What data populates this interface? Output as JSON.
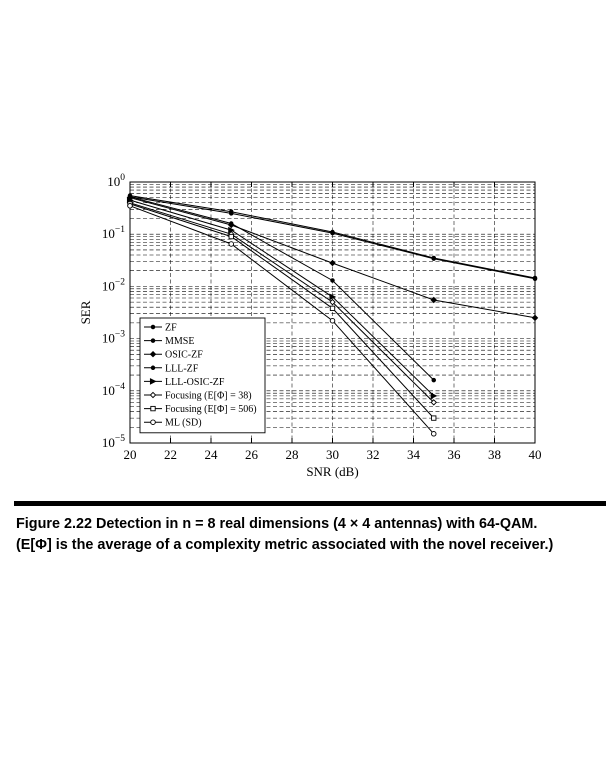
{
  "chart_data": {
    "type": "line",
    "xlabel": "SNR (dB)",
    "ylabel": "SER",
    "xlim": [
      20,
      40
    ],
    "ylim_log10": [
      -5,
      0
    ],
    "y_scale": "log",
    "x_ticks": [
      20,
      22,
      24,
      26,
      28,
      30,
      32,
      34,
      36,
      38,
      40
    ],
    "y_ticks": [
      {
        "base": "10",
        "exp": "0",
        "value": 1
      },
      {
        "base": "10",
        "exp": "−1",
        "value": 0.1
      },
      {
        "base": "10",
        "exp": "−2",
        "value": 0.01
      },
      {
        "base": "10",
        "exp": "−3",
        "value": 0.001
      },
      {
        "base": "10",
        "exp": "−4",
        "value": 0.0001
      },
      {
        "base": "10",
        "exp": "−5",
        "value": 1e-05
      }
    ],
    "grid": true,
    "legend_position": "lower-left",
    "series": [
      {
        "name": "ZF",
        "marker": "dot",
        "x": [
          20,
          25,
          30,
          35,
          40
        ],
        "y": [
          0.52,
          0.25,
          0.105,
          0.034,
          0.014
        ]
      },
      {
        "name": "MMSE",
        "marker": "dot",
        "x": [
          20,
          25,
          30,
          35,
          40
        ],
        "y": [
          0.55,
          0.27,
          0.11,
          0.035,
          0.0145
        ]
      },
      {
        "name": "OSIC-ZF",
        "marker": "diamond-filled",
        "x": [
          20,
          25,
          30,
          35,
          40
        ],
        "y": [
          0.5,
          0.15,
          0.028,
          0.0055,
          0.0025
        ]
      },
      {
        "name": "LLL-ZF",
        "marker": "dot",
        "x": [
          20,
          25,
          30,
          35
        ],
        "y": [
          0.52,
          0.16,
          0.013,
          0.00016
        ]
      },
      {
        "name": "LLL-OSIC-ZF",
        "marker": "triangle-right",
        "x": [
          20,
          25,
          30,
          35
        ],
        "y": [
          0.45,
          0.12,
          0.0063,
          8e-05
        ]
      },
      {
        "name": "Focusing (E[Φ] = 38)",
        "marker": "diamond-open",
        "x": [
          20,
          25,
          30,
          35
        ],
        "y": [
          0.4,
          0.1,
          0.005,
          6e-05
        ]
      },
      {
        "name": "Focusing (E[Φ] = 506)",
        "marker": "square-open",
        "x": [
          20,
          25,
          30,
          35
        ],
        "y": [
          0.38,
          0.09,
          0.0038,
          3e-05
        ]
      },
      {
        "name": "ML (SD)",
        "marker": "circle-open",
        "x": [
          20,
          25,
          30,
          35
        ],
        "y": [
          0.35,
          0.065,
          0.0022,
          1.5e-05
        ]
      }
    ]
  },
  "caption": {
    "label": "Figure 2.22",
    "text_line1": "Detection in n = 8 real dimensions (4 × 4 antennas) with 64-QAM.",
    "text_line2": "(E[Φ] is the average of a complexity metric associated with the novel receiver.)"
  }
}
